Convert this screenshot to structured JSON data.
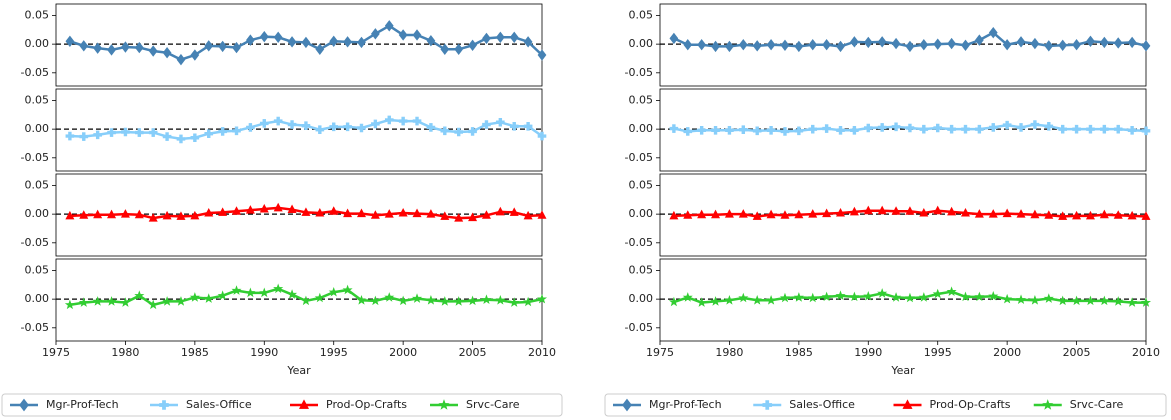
{
  "chart_data": [
    {
      "type": "line",
      "xlabel": "Year",
      "x": [
        1976,
        1977,
        1978,
        1979,
        1980,
        1981,
        1982,
        1983,
        1984,
        1985,
        1986,
        1987,
        1988,
        1989,
        1990,
        1991,
        1992,
        1993,
        1994,
        1995,
        1996,
        1997,
        1998,
        1999,
        2000,
        2001,
        2002,
        2003,
        2004,
        2005,
        2006,
        2007,
        2008,
        2009,
        2010
      ],
      "xlim": [
        1975,
        2010
      ],
      "xticks": [
        1975,
        1980,
        1985,
        1990,
        1995,
        2000,
        2005,
        2010
      ],
      "ylim": [
        -0.073,
        0.07
      ],
      "yticks": [
        -0.05,
        {
          "value": 0,
          "label": "0.00"
        },
        0.05
      ],
      "grid": false,
      "series": [
        {
          "name": "Mgr-Prof-Tech",
          "color": "#4682b4",
          "marker": "diamond",
          "values": [
            0.005,
            -0.003,
            -0.007,
            -0.01,
            -0.005,
            -0.006,
            -0.012,
            -0.015,
            -0.027,
            -0.019,
            -0.003,
            -0.004,
            -0.006,
            0.007,
            0.013,
            0.012,
            0.004,
            0.003,
            -0.009,
            0.005,
            0.004,
            0.003,
            0.018,
            0.032,
            0.016,
            0.016,
            0.006,
            -0.009,
            -0.009,
            -0.002,
            0.01,
            0.012,
            0.012,
            0.004,
            -0.019
          ]
        },
        {
          "name": "Sales-Office",
          "color": "#87cefa",
          "marker": "plus",
          "values": [
            -0.012,
            -0.013,
            -0.01,
            -0.006,
            -0.005,
            -0.006,
            -0.006,
            -0.013,
            -0.017,
            -0.015,
            -0.008,
            -0.004,
            -0.003,
            0.003,
            0.01,
            0.014,
            0.008,
            0.006,
            -0.001,
            0.004,
            0.004,
            0.002,
            0.009,
            0.016,
            0.014,
            0.014,
            0.003,
            -0.003,
            -0.005,
            -0.004,
            0.008,
            0.012,
            0.005,
            0.005,
            -0.012
          ]
        },
        {
          "name": "Prod-Op-Crafts",
          "color": "#ff0000",
          "marker": "triangle",
          "values": [
            -0.003,
            -0.002,
            -0.001,
            -0.001,
            0,
            -0.001,
            -0.007,
            -0.003,
            -0.004,
            -0.003,
            0.002,
            0.003,
            0.005,
            0.007,
            0.009,
            0.011,
            0.008,
            0.003,
            0.002,
            0.005,
            0.001,
            0.001,
            -0.002,
            0,
            0.002,
            0.001,
            0,
            -0.004,
            -0.007,
            -0.006,
            -0.002,
            0.004,
            0.003,
            -0.003,
            -0.002
          ]
        },
        {
          "name": "Srvc-Care",
          "color": "#32cd32",
          "marker": "star",
          "values": [
            -0.01,
            -0.006,
            -0.004,
            -0.004,
            -0.006,
            0.006,
            -0.01,
            -0.004,
            -0.004,
            0.003,
            0.001,
            0.006,
            0.015,
            0.011,
            0.011,
            0.018,
            0.008,
            -0.003,
            0.002,
            0.012,
            0.016,
            -0.002,
            -0.003,
            0.003,
            -0.003,
            0.001,
            -0.002,
            -0.004,
            -0.004,
            -0.003,
            -0.001,
            -0.002,
            -0.006,
            -0.005,
            0
          ]
        }
      ]
    },
    {
      "type": "line",
      "xlabel": "Year",
      "x": [
        1976,
        1977,
        1978,
        1979,
        1980,
        1981,
        1982,
        1983,
        1984,
        1985,
        1986,
        1987,
        1988,
        1989,
        1990,
        1991,
        1992,
        1993,
        1994,
        1995,
        1996,
        1997,
        1998,
        1999,
        2000,
        2001,
        2002,
        2003,
        2004,
        2005,
        2006,
        2007,
        2008,
        2009,
        2010
      ],
      "xlim": [
        1975,
        2010
      ],
      "xticks": [
        1975,
        1980,
        1985,
        1990,
        1995,
        2000,
        2005,
        2010
      ],
      "ylim": [
        -0.073,
        0.07
      ],
      "yticks": [
        -0.05,
        {
          "value": 0,
          "label": "0.00"
        },
        0.05
      ],
      "grid": false,
      "series": [
        {
          "name": "Mgr-Prof-Tech",
          "color": "#4682b4",
          "marker": "diamond",
          "values": [
            0.01,
            -0.001,
            -0.001,
            -0.004,
            -0.004,
            -0.001,
            -0.003,
            -0.001,
            -0.002,
            -0.004,
            -0.001,
            -0.001,
            -0.004,
            0.004,
            0.003,
            0.004,
            0.001,
            -0.004,
            -0.001,
            0,
            0.001,
            -0.002,
            0.007,
            0.02,
            -0.001,
            0.004,
            0.001,
            -0.003,
            -0.002,
            -0.001,
            0.005,
            0.003,
            0.002,
            0.003,
            -0.003
          ]
        },
        {
          "name": "Sales-Office",
          "color": "#87cefa",
          "marker": "plus",
          "values": [
            0.001,
            -0.004,
            -0.002,
            -0.002,
            -0.002,
            -0.001,
            -0.003,
            -0.002,
            -0.004,
            -0.003,
            0,
            0.001,
            -0.002,
            -0.002,
            0.002,
            0.003,
            0.004,
            0.002,
            0,
            0.002,
            0,
            0,
            0,
            0.003,
            0.007,
            0.003,
            0.008,
            0.005,
            0,
            0,
            0,
            0,
            0,
            -0.002,
            -0.003
          ]
        },
        {
          "name": "Prod-Op-Crafts",
          "color": "#ff0000",
          "marker": "triangle",
          "values": [
            -0.003,
            -0.002,
            -0.001,
            -0.001,
            0,
            0,
            -0.004,
            -0.001,
            -0.002,
            -0.001,
            0,
            0.001,
            0.002,
            0.004,
            0.006,
            0.006,
            0.005,
            0.005,
            0.002,
            0.006,
            0.004,
            0.002,
            0,
            0,
            0.001,
            0,
            -0.001,
            -0.002,
            -0.004,
            -0.003,
            -0.003,
            -0.001,
            -0.002,
            -0.003,
            -0.004
          ]
        },
        {
          "name": "Srvc-Care",
          "color": "#32cd32",
          "marker": "star",
          "values": [
            -0.005,
            0.003,
            -0.006,
            -0.004,
            -0.002,
            0.002,
            -0.002,
            -0.002,
            0.002,
            0.003,
            0.002,
            0.004,
            0.006,
            0.004,
            0.005,
            0.01,
            0.003,
            0.002,
            0.003,
            0.009,
            0.013,
            0.004,
            0.004,
            0.005,
            0,
            -0.001,
            -0.002,
            0.001,
            -0.003,
            -0.003,
            -0.003,
            -0.003,
            -0.004,
            -0.006,
            -0.006
          ]
        }
      ]
    }
  ]
}
